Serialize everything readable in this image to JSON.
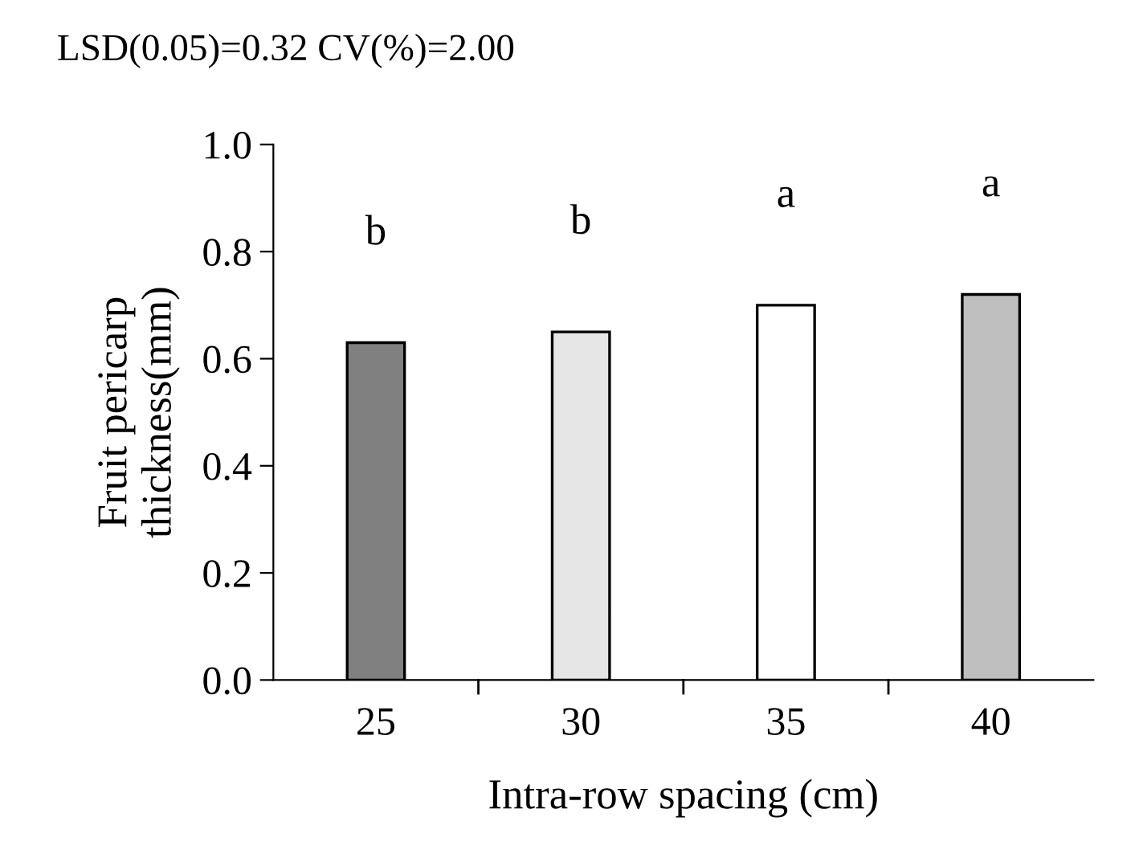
{
  "chart_data": {
    "type": "bar",
    "title": "LSD(0.05)=0.32 CV(%)=2.00",
    "xlabel": "Intra-row spacing (cm)",
    "ylabel": "Fruit pericarp\nthickness(mm)",
    "categories": [
      "25",
      "30",
      "35",
      "40"
    ],
    "values": [
      0.63,
      0.65,
      0.7,
      0.72
    ],
    "colors": [
      "#808080",
      "#e6e6e6",
      "#ffffff",
      "#bfbfbf"
    ],
    "ylim": [
      0,
      1.0
    ],
    "yticks": [
      {
        "value": 0,
        "label": "0.0"
      },
      {
        "value": 0.2,
        "label": "0.2"
      },
      {
        "value": 0.4,
        "label": "0.4"
      },
      {
        "value": 0.6,
        "label": "0.6"
      },
      {
        "value": 0.8,
        "label": "0.8"
      },
      {
        "value": 1.0,
        "label": "1.0"
      }
    ],
    "grid": false,
    "legend": false,
    "annotations": [
      "b",
      "b",
      "a",
      "a"
    ]
  }
}
